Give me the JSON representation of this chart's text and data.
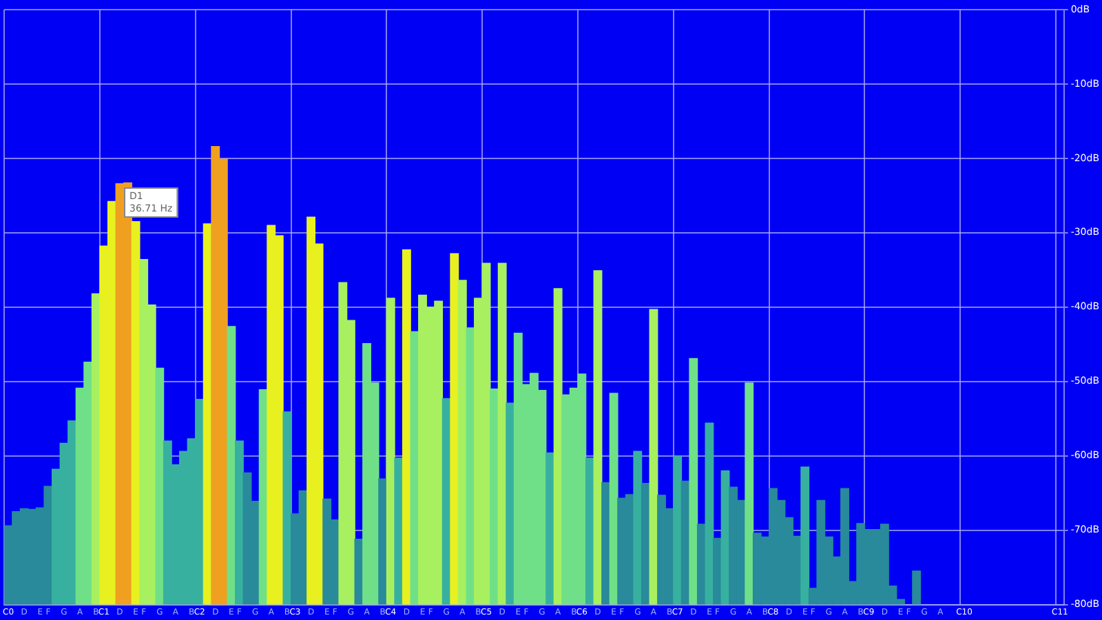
{
  "chart_data": {
    "type": "bar",
    "categories": [
      "C0",
      null,
      "D",
      null,
      "E",
      "F",
      null,
      "G",
      null,
      "A",
      null,
      "B",
      "C1",
      null,
      "D",
      null,
      "E",
      "F",
      null,
      "G",
      null,
      "A",
      null,
      "B",
      "C2",
      null,
      "D",
      null,
      "E",
      "F",
      null,
      "G",
      null,
      "A",
      null,
      "B",
      "C3",
      null,
      "D",
      null,
      "E",
      "F",
      null,
      "G",
      null,
      "A",
      null,
      "B",
      "C4",
      null,
      "D",
      null,
      "E",
      "F",
      null,
      "G",
      null,
      "A",
      null,
      "B",
      "C5",
      null,
      "D",
      null,
      "E",
      "F",
      null,
      "G",
      null,
      "A",
      null,
      "B",
      "C6",
      null,
      "D",
      null,
      "E",
      "F",
      null,
      "G",
      null,
      "A",
      null,
      "B",
      "C7",
      null,
      "D",
      null,
      "E",
      "F",
      null,
      "G",
      null,
      "A",
      null,
      "B",
      "C8",
      null,
      "D",
      null,
      "E",
      "F",
      null,
      "G",
      null,
      "A",
      null,
      "B",
      "C9",
      null,
      "D",
      null,
      "E",
      "F",
      null,
      "G",
      null,
      "A",
      null,
      null,
      "C10",
      null,
      null,
      null,
      null,
      null,
      null,
      null,
      null,
      null,
      null,
      null,
      "C11"
    ],
    "base": [
      -80,
      -80,
      -80,
      -80,
      -80,
      -80,
      -80,
      -80,
      -80,
      -80,
      -80,
      -80,
      -80,
      -80,
      -80,
      -80,
      -80,
      -80,
      -80,
      -80,
      -80,
      -80,
      -80,
      -80,
      -80,
      -80,
      -80,
      -80,
      -80,
      -80,
      -80,
      -80,
      -80,
      -80,
      -80,
      -80,
      -80,
      -80,
      -80,
      -80,
      -80,
      -80,
      -80,
      -80,
      -80,
      -80,
      -80,
      -80,
      -80,
      -80,
      -80,
      -80,
      -80,
      -80,
      -80,
      -80,
      -80,
      -80,
      -80,
      -80,
      -80,
      -80,
      -80,
      -80,
      -80,
      -80,
      -80,
      -80,
      -80,
      -80,
      -80,
      -80,
      -80,
      -80,
      -80,
      -80,
      -80,
      -80,
      -80,
      -80,
      -80,
      -80,
      -80,
      -80,
      -80,
      -80,
      -80,
      -80,
      -80,
      -80,
      -80,
      -80,
      -80,
      -80,
      -80,
      -80,
      -80,
      -80,
      -80,
      -80,
      -80,
      -80,
      -80,
      -80,
      -80,
      -80,
      -80,
      -80,
      -80,
      -80,
      -80,
      -80,
      -80,
      null,
      -80,
      null,
      null,
      null,
      null,
      null,
      null,
      null,
      null,
      null,
      null,
      null,
      null,
      null,
      null,
      null,
      null,
      null,
      null
    ],
    "values": [
      10.6,
      12.5,
      12.9,
      12.8,
      13,
      15.9,
      18.2,
      21.7,
      24.7,
      29.1,
      32.6,
      41.8,
      48.2,
      54.2,
      56.6,
      56.7,
      51.5,
      46.4,
      40.3,
      31.8,
      22,
      18.8,
      20.6,
      22.3,
      27.6,
      51.2,
      61.6,
      59.9,
      37.4,
      22,
      17.7,
      13.9,
      28.9,
      51,
      49.6,
      25.9,
      12.2,
      15.3,
      52.1,
      48.5,
      14.2,
      11.4,
      43.3,
      38.2,
      8.8,
      35.1,
      29.8,
      16.9,
      41.2,
      19.7,
      47.7,
      36.7,
      41.6,
      40,
      40.8,
      27.7,
      47.2,
      43.6,
      37.2,
      41.2,
      45.9,
      29,
      45.9,
      27.1,
      36.5,
      29.6,
      31.1,
      28.8,
      20.4,
      42.5,
      28.2,
      29.1,
      31,
      19.7,
      44.9,
      16.4,
      28.4,
      14.3,
      14.8,
      20.6,
      16.3,
      39.7,
      14.7,
      12.9,
      19.9,
      16.6,
      33.1,
      10.8,
      24.4,
      8.9,
      18,
      15.8,
      14,
      29.8,
      9.6,
      9.1,
      15.6,
      14,
      11.7,
      9.2,
      18.5,
      2.2,
      14,
      9.1,
      6.4,
      15.6,
      3.1,
      10.9,
      10.1,
      10.1,
      10.8,
      2.5,
      0.7,
      null,
      4.5,
      null,
      null,
      null,
      null,
      null,
      null,
      null,
      null,
      null,
      null,
      null,
      null,
      null,
      null,
      null,
      null,
      null,
      null
    ],
    "colors": [
      "#288a9a",
      "#288a9a",
      "#288a9a",
      "#288a9a",
      "#288a9a",
      "#288a9a",
      "#38b0a0",
      "#38b0a0",
      "#38b0a0",
      "#70e088",
      "#70e088",
      "#a8f060",
      "#e8f020",
      "#e8f020",
      "#f0a020",
      "#f0a020",
      "#e8f020",
      "#a8f060",
      "#a8f060",
      "#70e088",
      "#38b0a0",
      "#38b0a0",
      "#38b0a0",
      "#38b0a0",
      "#38b0a0",
      "#e8f020",
      "#f0a020",
      "#f0a020",
      "#70e088",
      "#38b0a0",
      "#288a9a",
      "#288a9a",
      "#70e088",
      "#e8f020",
      "#e8f020",
      "#38b0a0",
      "#288a9a",
      "#288a9a",
      "#e8f020",
      "#e8f020",
      "#288a9a",
      "#288a9a",
      "#a8f060",
      "#a8f060",
      "#288a9a",
      "#70e088",
      "#70e088",
      "#288a9a",
      "#a8f060",
      "#38b0a0",
      "#e8f020",
      "#70e088",
      "#a8f060",
      "#a8f060",
      "#a8f060",
      "#38b0a0",
      "#e8f020",
      "#a8f060",
      "#70e088",
      "#a8f060",
      "#a8f060",
      "#70e088",
      "#a8f060",
      "#38b0a0",
      "#70e088",
      "#70e088",
      "#70e088",
      "#70e088",
      "#38b0a0",
      "#a8f060",
      "#70e088",
      "#70e088",
      "#70e088",
      "#38b0a0",
      "#a8f060",
      "#288a9a",
      "#70e088",
      "#288a9a",
      "#288a9a",
      "#38b0a0",
      "#288a9a",
      "#a8f060",
      "#288a9a",
      "#288a9a",
      "#38b0a0",
      "#288a9a",
      "#70e088",
      "#288a9a",
      "#38b0a0",
      "#288a9a",
      "#38b0a0",
      "#288a9a",
      "#288a9a",
      "#70e088",
      "#288a9a",
      "#288a9a",
      "#288a9a",
      "#288a9a",
      "#288a9a",
      "#288a9a",
      "#38b0a0",
      "#288a9a",
      "#288a9a",
      "#288a9a",
      "#288a9a",
      "#288a9a",
      "#288a9a",
      "#288a9a",
      "#288a9a",
      "#288a9a",
      "#288a9a",
      "#288a9a",
      "#288a9a",
      null,
      "#288a9a",
      null,
      null,
      null,
      null,
      null,
      null,
      null,
      null,
      null,
      null,
      null,
      null,
      null,
      null,
      null,
      null,
      null,
      null
    ],
    "ylim": [
      -80,
      0
    ],
    "yticks": [
      {
        "value": 0,
        "label": "0dB"
      },
      {
        "value": -10,
        "label": "-10dB"
      },
      {
        "value": -20,
        "label": "-20dB"
      },
      {
        "value": -30,
        "label": "-30dB"
      },
      {
        "value": -40,
        "label": "-40dB"
      },
      {
        "value": -50,
        "label": "-50dB"
      },
      {
        "value": -60,
        "label": "-60dB"
      },
      {
        "value": -70,
        "label": "-70dB"
      },
      {
        "value": -80,
        "label": "-80dB"
      }
    ],
    "grid": true,
    "annotations": [
      "D1\n36.71 Hz"
    ]
  }
}
